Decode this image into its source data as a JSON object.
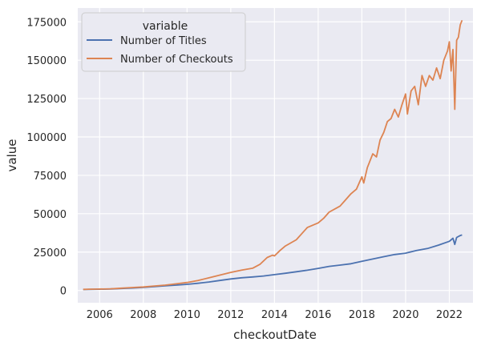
{
  "chart_data": {
    "type": "line",
    "xlabel": "checkoutDate",
    "ylabel": "value",
    "legend": {
      "title": "variable",
      "placement": "top-left"
    },
    "grid": true,
    "x_ticks": [
      "2006",
      "2008",
      "2010",
      "2012",
      "2014",
      "2016",
      "2018",
      "2020",
      "2022"
    ],
    "y_ticks": [
      "0",
      "25000",
      "50000",
      "75000",
      "100000",
      "125000",
      "150000",
      "175000"
    ],
    "xlim": [
      "2005-01-01",
      "2023-02-01"
    ],
    "ylim": [
      -8000,
      184000
    ],
    "colors": {
      "background": "#eaeaf2",
      "grid": "#ffffff",
      "titles": "#4c72b0",
      "checkouts": "#dd8452"
    },
    "series": [
      {
        "name": "Number of Titles",
        "x": [
          "2005-04",
          "2005-07",
          "2006-01",
          "2006-07",
          "2007-01",
          "2007-07",
          "2008-01",
          "2008-07",
          "2009-01",
          "2009-07",
          "2010-01",
          "2010-07",
          "2011-01",
          "2011-07",
          "2012-01",
          "2012-07",
          "2013-01",
          "2013-07",
          "2014-01",
          "2014-07",
          "2015-01",
          "2015-07",
          "2016-01",
          "2016-07",
          "2017-01",
          "2017-07",
          "2018-01",
          "2018-07",
          "2019-01",
          "2019-07",
          "2020-01",
          "2020-07",
          "2021-01",
          "2021-07",
          "2022-01",
          "2022-03",
          "2022-04",
          "2022-05",
          "2022-07",
          "2022-08"
        ],
        "values": [
          600,
          700,
          800,
          1000,
          1300,
          1600,
          2000,
          2500,
          3000,
          3500,
          4000,
          4700,
          5500,
          6500,
          7500,
          8300,
          8800,
          9400,
          10300,
          11200,
          12200,
          13200,
          14400,
          15700,
          16500,
          17400,
          19000,
          20500,
          22000,
          23400,
          24300,
          26000,
          27300,
          29500,
          32000,
          34000,
          30000,
          34500,
          35800,
          36200
        ]
      },
      {
        "name": "Number of Checkouts",
        "x": [
          "2005-04",
          "2005-07",
          "2006-01",
          "2006-07",
          "2007-01",
          "2007-07",
          "2008-01",
          "2008-07",
          "2009-01",
          "2009-07",
          "2010-01",
          "2010-07",
          "2011-01",
          "2011-07",
          "2012-01",
          "2012-07",
          "2013-01",
          "2013-05",
          "2013-09",
          "2013-12",
          "2014-01",
          "2014-04",
          "2014-07",
          "2015-01",
          "2015-04",
          "2015-07",
          "2016-01",
          "2016-04",
          "2016-07",
          "2017-01",
          "2017-04",
          "2017-07",
          "2017-10",
          "2018-01",
          "2018-02",
          "2018-04",
          "2018-07",
          "2018-09",
          "2018-11",
          "2019-01",
          "2019-03",
          "2019-05",
          "2019-07",
          "2019-09",
          "2019-11",
          "2020-01",
          "2020-02",
          "2020-04",
          "2020-06",
          "2020-08",
          "2020-10",
          "2020-12",
          "2021-02",
          "2021-04",
          "2021-06",
          "2021-08",
          "2021-10",
          "2021-12",
          "2022-01",
          "2022-02",
          "2022-03",
          "2022-04",
          "2022-05",
          "2022-06",
          "2022-07",
          "2022-08"
        ],
        "values": [
          700,
          800,
          900,
          1100,
          1500,
          1900,
          2300,
          2900,
          3500,
          4300,
          5200,
          6500,
          8200,
          10000,
          11800,
          13300,
          14500,
          17000,
          21500,
          23000,
          22500,
          26000,
          29000,
          33000,
          37000,
          41000,
          44000,
          47000,
          51000,
          55000,
          59000,
          63000,
          66000,
          74000,
          70000,
          80000,
          89000,
          87000,
          98000,
          103000,
          110000,
          112000,
          118000,
          113000,
          121000,
          128000,
          115000,
          130000,
          133000,
          121000,
          140000,
          133000,
          140000,
          137000,
          145000,
          138000,
          150000,
          156000,
          162000,
          143000,
          157000,
          118000,
          163000,
          165000,
          173000,
          176000
        ]
      }
    ]
  }
}
